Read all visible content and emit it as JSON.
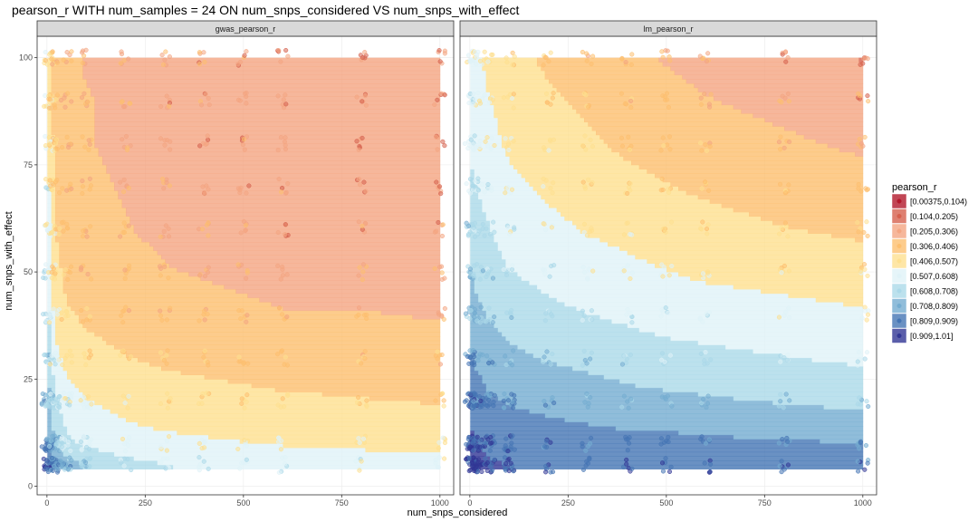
{
  "chart_data": {
    "type": "heatmap",
    "title": "pearson_r WITH num_samples = 24 ON num_snps_considered VS num_snps_with_effect",
    "xlabel": "num_snps_considered",
    "ylabel": "num_snps_with_effect",
    "xlim": [
      -25,
      1035
    ],
    "ylim": [
      -2,
      105
    ],
    "x_ticks": [
      0,
      250,
      500,
      750,
      1000
    ],
    "y_ticks": [
      0,
      25,
      50,
      75,
      100
    ],
    "grid": true,
    "facets": [
      "gwas_pearson_r",
      "lm_pearson_r"
    ],
    "x_levels": [
      1,
      10,
      20,
      50,
      100,
      200,
      300,
      400,
      500,
      600,
      800,
      1000
    ],
    "y_levels": [
      5,
      10,
      20,
      30,
      40,
      50,
      60,
      70,
      80,
      90,
      100
    ],
    "legend": {
      "title": "pearson_r",
      "position": "right",
      "entries": [
        {
          "label": "[0.00375,0.104)",
          "color": "#b2182b"
        },
        {
          "label": "[0.104,0.205)",
          "color": "#d6604d"
        },
        {
          "label": "[0.205,0.306)",
          "color": "#f4a582"
        },
        {
          "label": "[0.306,0.406)",
          "color": "#fdbf6f"
        },
        {
          "label": "[0.406,0.507)",
          "color": "#fee090"
        },
        {
          "label": "[0.507,0.608)",
          "color": "#e0f3f8"
        },
        {
          "label": "[0.608,0.708)",
          "color": "#abd9e9"
        },
        {
          "label": "[0.708,0.809)",
          "color": "#74add1"
        },
        {
          "label": "[0.809,0.909)",
          "color": "#4575b4"
        },
        {
          "label": "[0.909,1.01]",
          "color": "#313695"
        }
      ]
    },
    "series": [
      {
        "name": "gwas_pearson_r",
        "z": [
          [
            0.93,
            0.86,
            0.8,
            0.75,
            0.7,
            0.64,
            0.61,
            0.6,
            0.58,
            0.57,
            0.55,
            0.54
          ],
          [
            0.86,
            0.78,
            0.7,
            0.63,
            0.59,
            0.55,
            0.53,
            0.52,
            0.51,
            0.5,
            0.49,
            0.48
          ],
          [
            0.78,
            0.7,
            0.62,
            0.55,
            0.51,
            0.47,
            0.45,
            0.44,
            0.43,
            0.42,
            0.41,
            0.4
          ],
          [
            0.7,
            0.62,
            0.54,
            0.48,
            0.44,
            0.41,
            0.39,
            0.38,
            0.37,
            0.36,
            0.36,
            0.35
          ],
          [
            0.64,
            0.56,
            0.48,
            0.42,
            0.39,
            0.36,
            0.34,
            0.33,
            0.32,
            0.31,
            0.31,
            0.3
          ],
          [
            0.6,
            0.52,
            0.44,
            0.38,
            0.35,
            0.33,
            0.31,
            0.3,
            0.29,
            0.28,
            0.28,
            0.27
          ],
          [
            0.57,
            0.49,
            0.41,
            0.35,
            0.33,
            0.31,
            0.29,
            0.27,
            0.26,
            0.25,
            0.25,
            0.24
          ],
          [
            0.55,
            0.47,
            0.39,
            0.34,
            0.32,
            0.3,
            0.28,
            0.26,
            0.24,
            0.24,
            0.23,
            0.23
          ],
          [
            0.53,
            0.45,
            0.38,
            0.33,
            0.31,
            0.29,
            0.27,
            0.25,
            0.24,
            0.23,
            0.23,
            0.22
          ],
          [
            0.52,
            0.44,
            0.37,
            0.32,
            0.31,
            0.29,
            0.27,
            0.25,
            0.24,
            0.23,
            0.22,
            0.22
          ],
          [
            0.51,
            0.43,
            0.36,
            0.32,
            0.3,
            0.29,
            0.27,
            0.26,
            0.24,
            0.23,
            0.22,
            0.22
          ]
        ]
      },
      {
        "name": "lm_pearson_r",
        "z": [
          [
            0.96,
            0.95,
            0.94,
            0.92,
            0.91,
            0.9,
            0.89,
            0.89,
            0.88,
            0.88,
            0.87,
            0.86
          ],
          [
            0.94,
            0.92,
            0.91,
            0.89,
            0.88,
            0.86,
            0.85,
            0.84,
            0.84,
            0.83,
            0.82,
            0.81
          ],
          [
            0.88,
            0.86,
            0.85,
            0.82,
            0.8,
            0.78,
            0.76,
            0.74,
            0.73,
            0.72,
            0.7,
            0.68
          ],
          [
            0.82,
            0.8,
            0.79,
            0.76,
            0.73,
            0.7,
            0.68,
            0.66,
            0.64,
            0.63,
            0.61,
            0.59
          ],
          [
            0.76,
            0.74,
            0.73,
            0.7,
            0.67,
            0.63,
            0.61,
            0.59,
            0.57,
            0.56,
            0.54,
            0.52
          ],
          [
            0.71,
            0.69,
            0.68,
            0.65,
            0.61,
            0.58,
            0.55,
            0.53,
            0.51,
            0.49,
            0.47,
            0.45
          ],
          [
            0.67,
            0.65,
            0.64,
            0.61,
            0.57,
            0.53,
            0.5,
            0.48,
            0.45,
            0.44,
            0.41,
            0.39
          ],
          [
            0.63,
            0.61,
            0.6,
            0.57,
            0.53,
            0.49,
            0.46,
            0.43,
            0.41,
            0.39,
            0.36,
            0.34
          ],
          [
            0.6,
            0.58,
            0.57,
            0.54,
            0.49,
            0.45,
            0.42,
            0.39,
            0.37,
            0.35,
            0.32,
            0.29
          ],
          [
            0.57,
            0.56,
            0.54,
            0.51,
            0.46,
            0.42,
            0.39,
            0.36,
            0.33,
            0.31,
            0.28,
            0.25
          ],
          [
            0.55,
            0.54,
            0.52,
            0.48,
            0.44,
            0.39,
            0.36,
            0.33,
            0.3,
            0.28,
            0.24,
            0.2
          ]
        ]
      }
    ]
  }
}
